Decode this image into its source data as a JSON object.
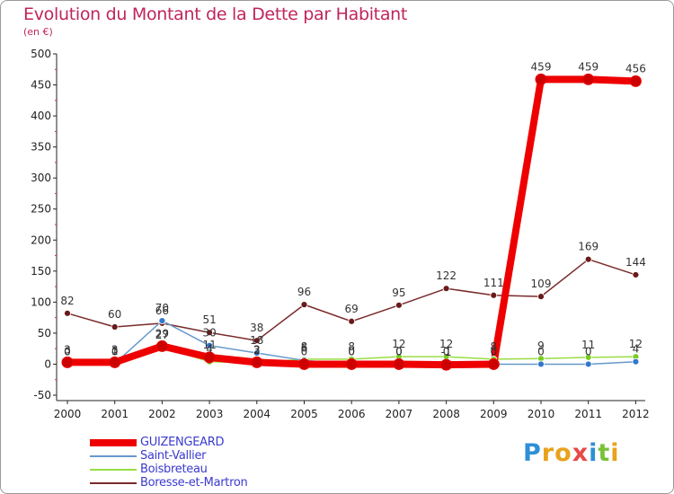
{
  "chart_data": {
    "type": "line",
    "title": "Evolution du Montant de la Dette par Habitant",
    "subtitle": "(en €)",
    "xlabel": "",
    "ylabel": "",
    "x": [
      "2000",
      "2001",
      "2002",
      "2003",
      "2004",
      "2005",
      "2006",
      "2007",
      "2008",
      "2009",
      "2010",
      "2011",
      "2012"
    ],
    "ylim": [
      -50,
      500
    ],
    "yticks": [
      -50,
      0,
      50,
      100,
      150,
      200,
      250,
      300,
      350,
      400,
      450,
      500
    ],
    "grid": false,
    "legend_position": "bottom-left",
    "series": [
      {
        "name": "GUIZENGEARD",
        "color": "#ee0000",
        "marker_color": "#cc0000",
        "width": 8,
        "labeled": true,
        "values": [
          3,
          3,
          29,
          11,
          3,
          0,
          0,
          0,
          -1,
          0,
          459,
          459,
          456
        ]
      },
      {
        "name": "Saint-Vallier",
        "color": "#6699cc",
        "marker_color": "#3377cc",
        "width": 1.5,
        "labeled": true,
        "values": [
          0,
          1,
          70,
          30,
          18,
          6,
          0,
          0,
          0,
          0,
          0,
          0,
          4
        ]
      },
      {
        "name": "Boisbreteau",
        "color": "#99dd44",
        "marker_color": "#77cc22",
        "width": 1.5,
        "labeled": true,
        "values": [
          0,
          0,
          27,
          4,
          2,
          8,
          8,
          12,
          12,
          8,
          9,
          11,
          12
        ]
      },
      {
        "name": "Boresse-et-Martron",
        "color": "#7a2a2a",
        "marker_color": "#6a1a1a",
        "width": 1.5,
        "labeled": true,
        "values": [
          82,
          60,
          66,
          51,
          38,
          96,
          69,
          95,
          122,
          111,
          109,
          169,
          144
        ]
      }
    ]
  },
  "logo": {
    "letters": [
      "P",
      "r",
      "o",
      "x",
      "i",
      "t",
      "i"
    ],
    "colors": [
      "#2f8fd6",
      "#e8a21c",
      "#e8a21c",
      "#e84848",
      "#2f8fd6",
      "#7ac13a",
      "#e8a21c"
    ]
  }
}
